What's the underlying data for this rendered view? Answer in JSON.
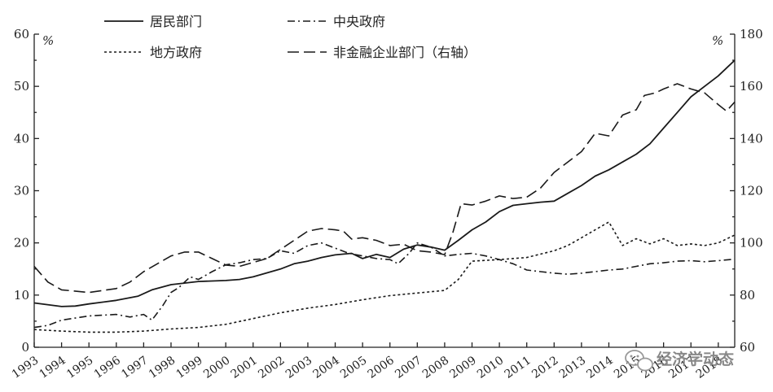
{
  "chart_data": {
    "type": "line",
    "x": [
      1993,
      1994,
      1995,
      1996,
      1997,
      1998,
      1999,
      2000,
      2001,
      2002,
      2003,
      2004,
      2005,
      2006,
      2007,
      2008,
      2009,
      2010,
      2011,
      2012,
      2013,
      2014,
      2015,
      2016,
      2017,
      2018
    ],
    "x_tick_labels": [
      "1993",
      "1994",
      "1995",
      "1996",
      "1997",
      "1998",
      "1999",
      "2000",
      "2001",
      "2002",
      "2003",
      "2004",
      "2005",
      "2006",
      "2007",
      "2008",
      "2009",
      "2010",
      "2011",
      "2012",
      "2013",
      "2014",
      "2015",
      "2016",
      "2017",
      "2018"
    ],
    "y_left_unit": "%",
    "y_right_unit": "%",
    "y_left_range": [
      0,
      60
    ],
    "y_right_range": [
      60,
      180
    ],
    "y_left_ticks": [
      0,
      10,
      20,
      30,
      40,
      50,
      60
    ],
    "y_right_ticks": [
      60,
      80,
      100,
      120,
      140,
      160,
      180
    ],
    "legend_position": "top",
    "grid": false,
    "series": [
      {
        "name": "居民部门",
        "axis": "left",
        "dash": "solid",
        "points": [
          [
            1993.0,
            8.5
          ],
          [
            1994.0,
            7.8
          ],
          [
            1994.5,
            7.9
          ],
          [
            1995.0,
            8.3
          ],
          [
            1996.0,
            9.0
          ],
          [
            1996.8,
            9.8
          ],
          [
            1997.3,
            11.0
          ],
          [
            1998.0,
            12.0
          ],
          [
            1999.0,
            12.6
          ],
          [
            2000.0,
            12.8
          ],
          [
            2000.5,
            13.0
          ],
          [
            2001.0,
            13.5
          ],
          [
            2002.0,
            15.0
          ],
          [
            2002.5,
            16.0
          ],
          [
            2003.0,
            16.5
          ],
          [
            2003.5,
            17.2
          ],
          [
            2004.0,
            17.7
          ],
          [
            2004.6,
            18.0
          ],
          [
            2005.0,
            17.0
          ],
          [
            2005.5,
            17.8
          ],
          [
            2006.0,
            17.2
          ],
          [
            2006.5,
            18.8
          ],
          [
            2007.0,
            19.6
          ],
          [
            2007.5,
            19.2
          ],
          [
            2008.0,
            18.6
          ],
          [
            2008.5,
            20.5
          ],
          [
            2009.0,
            22.5
          ],
          [
            2009.5,
            24.0
          ],
          [
            2010.0,
            26.0
          ],
          [
            2010.5,
            27.2
          ],
          [
            2011.0,
            27.5
          ],
          [
            2011.5,
            27.8
          ],
          [
            2012.0,
            28.0
          ],
          [
            2012.5,
            29.5
          ],
          [
            2013.0,
            31.0
          ],
          [
            2013.5,
            32.8
          ],
          [
            2014.0,
            34.0
          ],
          [
            2014.5,
            35.5
          ],
          [
            2015.0,
            37.0
          ],
          [
            2015.5,
            39.0
          ],
          [
            2016.0,
            42.0
          ],
          [
            2016.5,
            45.0
          ],
          [
            2017.0,
            48.0
          ],
          [
            2017.5,
            50.0
          ],
          [
            2018.0,
            52.0
          ],
          [
            2018.3,
            53.5
          ],
          [
            2018.6,
            55.0
          ]
        ]
      },
      {
        "name": "中央政府",
        "axis": "left",
        "dash": "dash-dot",
        "points": [
          [
            1993.0,
            3.8
          ],
          [
            1993.5,
            4.2
          ],
          [
            1994.0,
            5.2
          ],
          [
            1995.0,
            6.0
          ],
          [
            1996.0,
            6.3
          ],
          [
            1996.5,
            5.8
          ],
          [
            1997.0,
            6.3
          ],
          [
            1997.3,
            5.2
          ],
          [
            1997.7,
            8.0
          ],
          [
            1998.0,
            10.5
          ],
          [
            1998.3,
            11.5
          ],
          [
            1998.7,
            13.5
          ],
          [
            1999.0,
            13.0
          ],
          [
            1999.5,
            14.5
          ],
          [
            2000.0,
            15.8
          ],
          [
            2000.5,
            16.2
          ],
          [
            2001.0,
            16.8
          ],
          [
            2001.5,
            17.0
          ],
          [
            2002.0,
            18.5
          ],
          [
            2002.5,
            18.0
          ],
          [
            2003.0,
            19.5
          ],
          [
            2003.5,
            20.0
          ],
          [
            2004.0,
            19.0
          ],
          [
            2004.5,
            18.0
          ],
          [
            2005.0,
            17.5
          ],
          [
            2005.5,
            17.0
          ],
          [
            2006.0,
            16.8
          ],
          [
            2006.3,
            16.0
          ],
          [
            2006.7,
            18.0
          ],
          [
            2007.0,
            20.0
          ],
          [
            2007.5,
            19.2
          ],
          [
            2008.0,
            17.5
          ],
          [
            2008.5,
            17.8
          ],
          [
            2009.0,
            18.0
          ],
          [
            2009.5,
            17.5
          ],
          [
            2010.0,
            16.8
          ],
          [
            2010.5,
            16.0
          ],
          [
            2011.0,
            14.8
          ],
          [
            2011.5,
            14.5
          ],
          [
            2012.0,
            14.2
          ],
          [
            2012.5,
            14.0
          ],
          [
            2013.0,
            14.2
          ],
          [
            2013.5,
            14.5
          ],
          [
            2014.0,
            14.8
          ],
          [
            2014.5,
            15.0
          ],
          [
            2015.0,
            15.5
          ],
          [
            2015.5,
            16.0
          ],
          [
            2016.0,
            16.2
          ],
          [
            2016.5,
            16.5
          ],
          [
            2017.0,
            16.6
          ],
          [
            2017.5,
            16.4
          ],
          [
            2018.0,
            16.6
          ],
          [
            2018.6,
            16.9
          ]
        ]
      },
      {
        "name": "地方政府",
        "axis": "left",
        "dash": "short-dash",
        "points": [
          [
            1993.0,
            3.4
          ],
          [
            1994.0,
            3.1
          ],
          [
            1995.0,
            2.9
          ],
          [
            1996.0,
            2.9
          ],
          [
            1997.0,
            3.1
          ],
          [
            1998.0,
            3.5
          ],
          [
            1999.0,
            3.8
          ],
          [
            2000.0,
            4.4
          ],
          [
            2001.0,
            5.5
          ],
          [
            2002.0,
            6.6
          ],
          [
            2003.0,
            7.5
          ],
          [
            2004.0,
            8.2
          ],
          [
            2005.0,
            9.1
          ],
          [
            2006.0,
            9.9
          ],
          [
            2007.0,
            10.4
          ],
          [
            2008.0,
            10.9
          ],
          [
            2008.5,
            13.0
          ],
          [
            2009.0,
            16.5
          ],
          [
            2010.0,
            16.8
          ],
          [
            2011.0,
            17.2
          ],
          [
            2012.0,
            18.5
          ],
          [
            2012.5,
            19.5
          ],
          [
            2013.0,
            21.0
          ],
          [
            2013.5,
            22.5
          ],
          [
            2014.0,
            24.0
          ],
          [
            2014.5,
            19.5
          ],
          [
            2015.0,
            20.8
          ],
          [
            2015.5,
            19.8
          ],
          [
            2016.0,
            20.8
          ],
          [
            2016.5,
            19.5
          ],
          [
            2017.0,
            19.8
          ],
          [
            2017.5,
            19.5
          ],
          [
            2018.0,
            20.0
          ],
          [
            2018.6,
            21.5
          ]
        ]
      },
      {
        "name": "非金融企业部门（右轴）",
        "axis": "right",
        "dash": "long-dash",
        "points": [
          [
            1993.0,
            91.0
          ],
          [
            1993.5,
            85.0
          ],
          [
            1994.0,
            82.0
          ],
          [
            1995.0,
            81.0
          ],
          [
            1996.0,
            82.5
          ],
          [
            1996.5,
            85.0
          ],
          [
            1997.0,
            89.0
          ],
          [
            1998.0,
            95.0
          ],
          [
            1998.5,
            96.5
          ],
          [
            1999.0,
            96.5
          ],
          [
            1999.5,
            94.0
          ],
          [
            2000.0,
            91.5
          ],
          [
            2000.5,
            91.0
          ],
          [
            2001.0,
            92.5
          ],
          [
            2001.5,
            94.0
          ],
          [
            2002.0,
            97.5
          ],
          [
            2002.5,
            101.0
          ],
          [
            2003.0,
            104.5
          ],
          [
            2003.5,
            105.5
          ],
          [
            2004.0,
            105.0
          ],
          [
            2004.3,
            104.5
          ],
          [
            2004.6,
            101.5
          ],
          [
            2005.0,
            102.0
          ],
          [
            2005.5,
            101.0
          ],
          [
            2006.0,
            99.0
          ],
          [
            2006.5,
            99.5
          ],
          [
            2007.0,
            97.0
          ],
          [
            2007.5,
            96.5
          ],
          [
            2008.0,
            95.5
          ],
          [
            2008.3,
            104.0
          ],
          [
            2008.6,
            115.0
          ],
          [
            2009.0,
            114.5
          ],
          [
            2009.5,
            116.0
          ],
          [
            2010.0,
            118.0
          ],
          [
            2010.5,
            117.0
          ],
          [
            2011.0,
            117.5
          ],
          [
            2011.5,
            121.0
          ],
          [
            2012.0,
            127.0
          ],
          [
            2012.5,
            131.0
          ],
          [
            2013.0,
            135.0
          ],
          [
            2013.5,
            142.0
          ],
          [
            2014.0,
            141.0
          ],
          [
            2014.5,
            149.0
          ],
          [
            2015.0,
            151.0
          ],
          [
            2015.3,
            156.5
          ],
          [
            2015.7,
            157.5
          ],
          [
            2016.0,
            159.0
          ],
          [
            2016.5,
            161.0
          ],
          [
            2017.0,
            159.0
          ],
          [
            2017.5,
            157.5
          ],
          [
            2018.0,
            153.0
          ],
          [
            2018.3,
            150.5
          ],
          [
            2018.6,
            154.0
          ]
        ]
      }
    ]
  },
  "watermark": {
    "text": "经济学动态"
  }
}
